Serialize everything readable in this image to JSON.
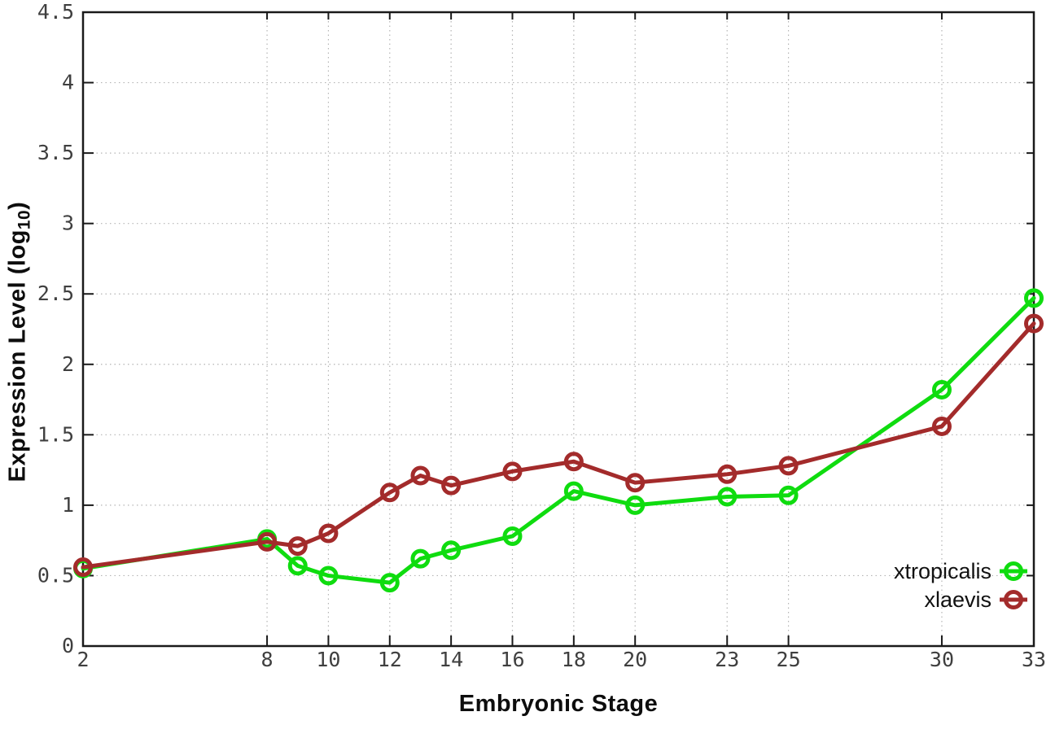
{
  "chart_data": {
    "type": "line",
    "title": "",
    "xlabel": "Embryonic Stage",
    "ylabel_prefix": "Expression Level (log",
    "ylabel_sub": "10",
    "ylabel_suffix": ")",
    "x": [
      2,
      8,
      9,
      10,
      12,
      13,
      14,
      16,
      18,
      20,
      23,
      25,
      30,
      33
    ],
    "xticks": [
      2,
      8,
      10,
      12,
      14,
      16,
      18,
      20,
      23,
      25,
      30,
      33
    ],
    "xlim": [
      2,
      33
    ],
    "ylim": [
      0,
      4.5
    ],
    "yticks": [
      0,
      0.5,
      1,
      1.5,
      2,
      2.5,
      3,
      3.5,
      4,
      4.5
    ],
    "grid": true,
    "legend_position": "inside-bottom-right",
    "series": [
      {
        "name": "xtropicalis",
        "color": "#0fdc0f",
        "values": [
          0.55,
          0.76,
          0.57,
          0.5,
          0.45,
          0.62,
          0.68,
          0.78,
          1.1,
          1.0,
          1.06,
          1.07,
          1.82,
          2.47
        ]
      },
      {
        "name": "xlaevis",
        "color": "#a32b2b",
        "values": [
          0.56,
          0.74,
          0.71,
          0.8,
          1.09,
          1.21,
          1.14,
          1.24,
          1.31,
          1.16,
          1.22,
          1.28,
          1.56,
          2.29
        ]
      }
    ],
    "colors": {
      "grid": "#b4b4b4",
      "axis": "#1a1a1a",
      "tick_label": "#3f3f3f",
      "legend_text": "#111111",
      "background": "#ffffff"
    }
  }
}
